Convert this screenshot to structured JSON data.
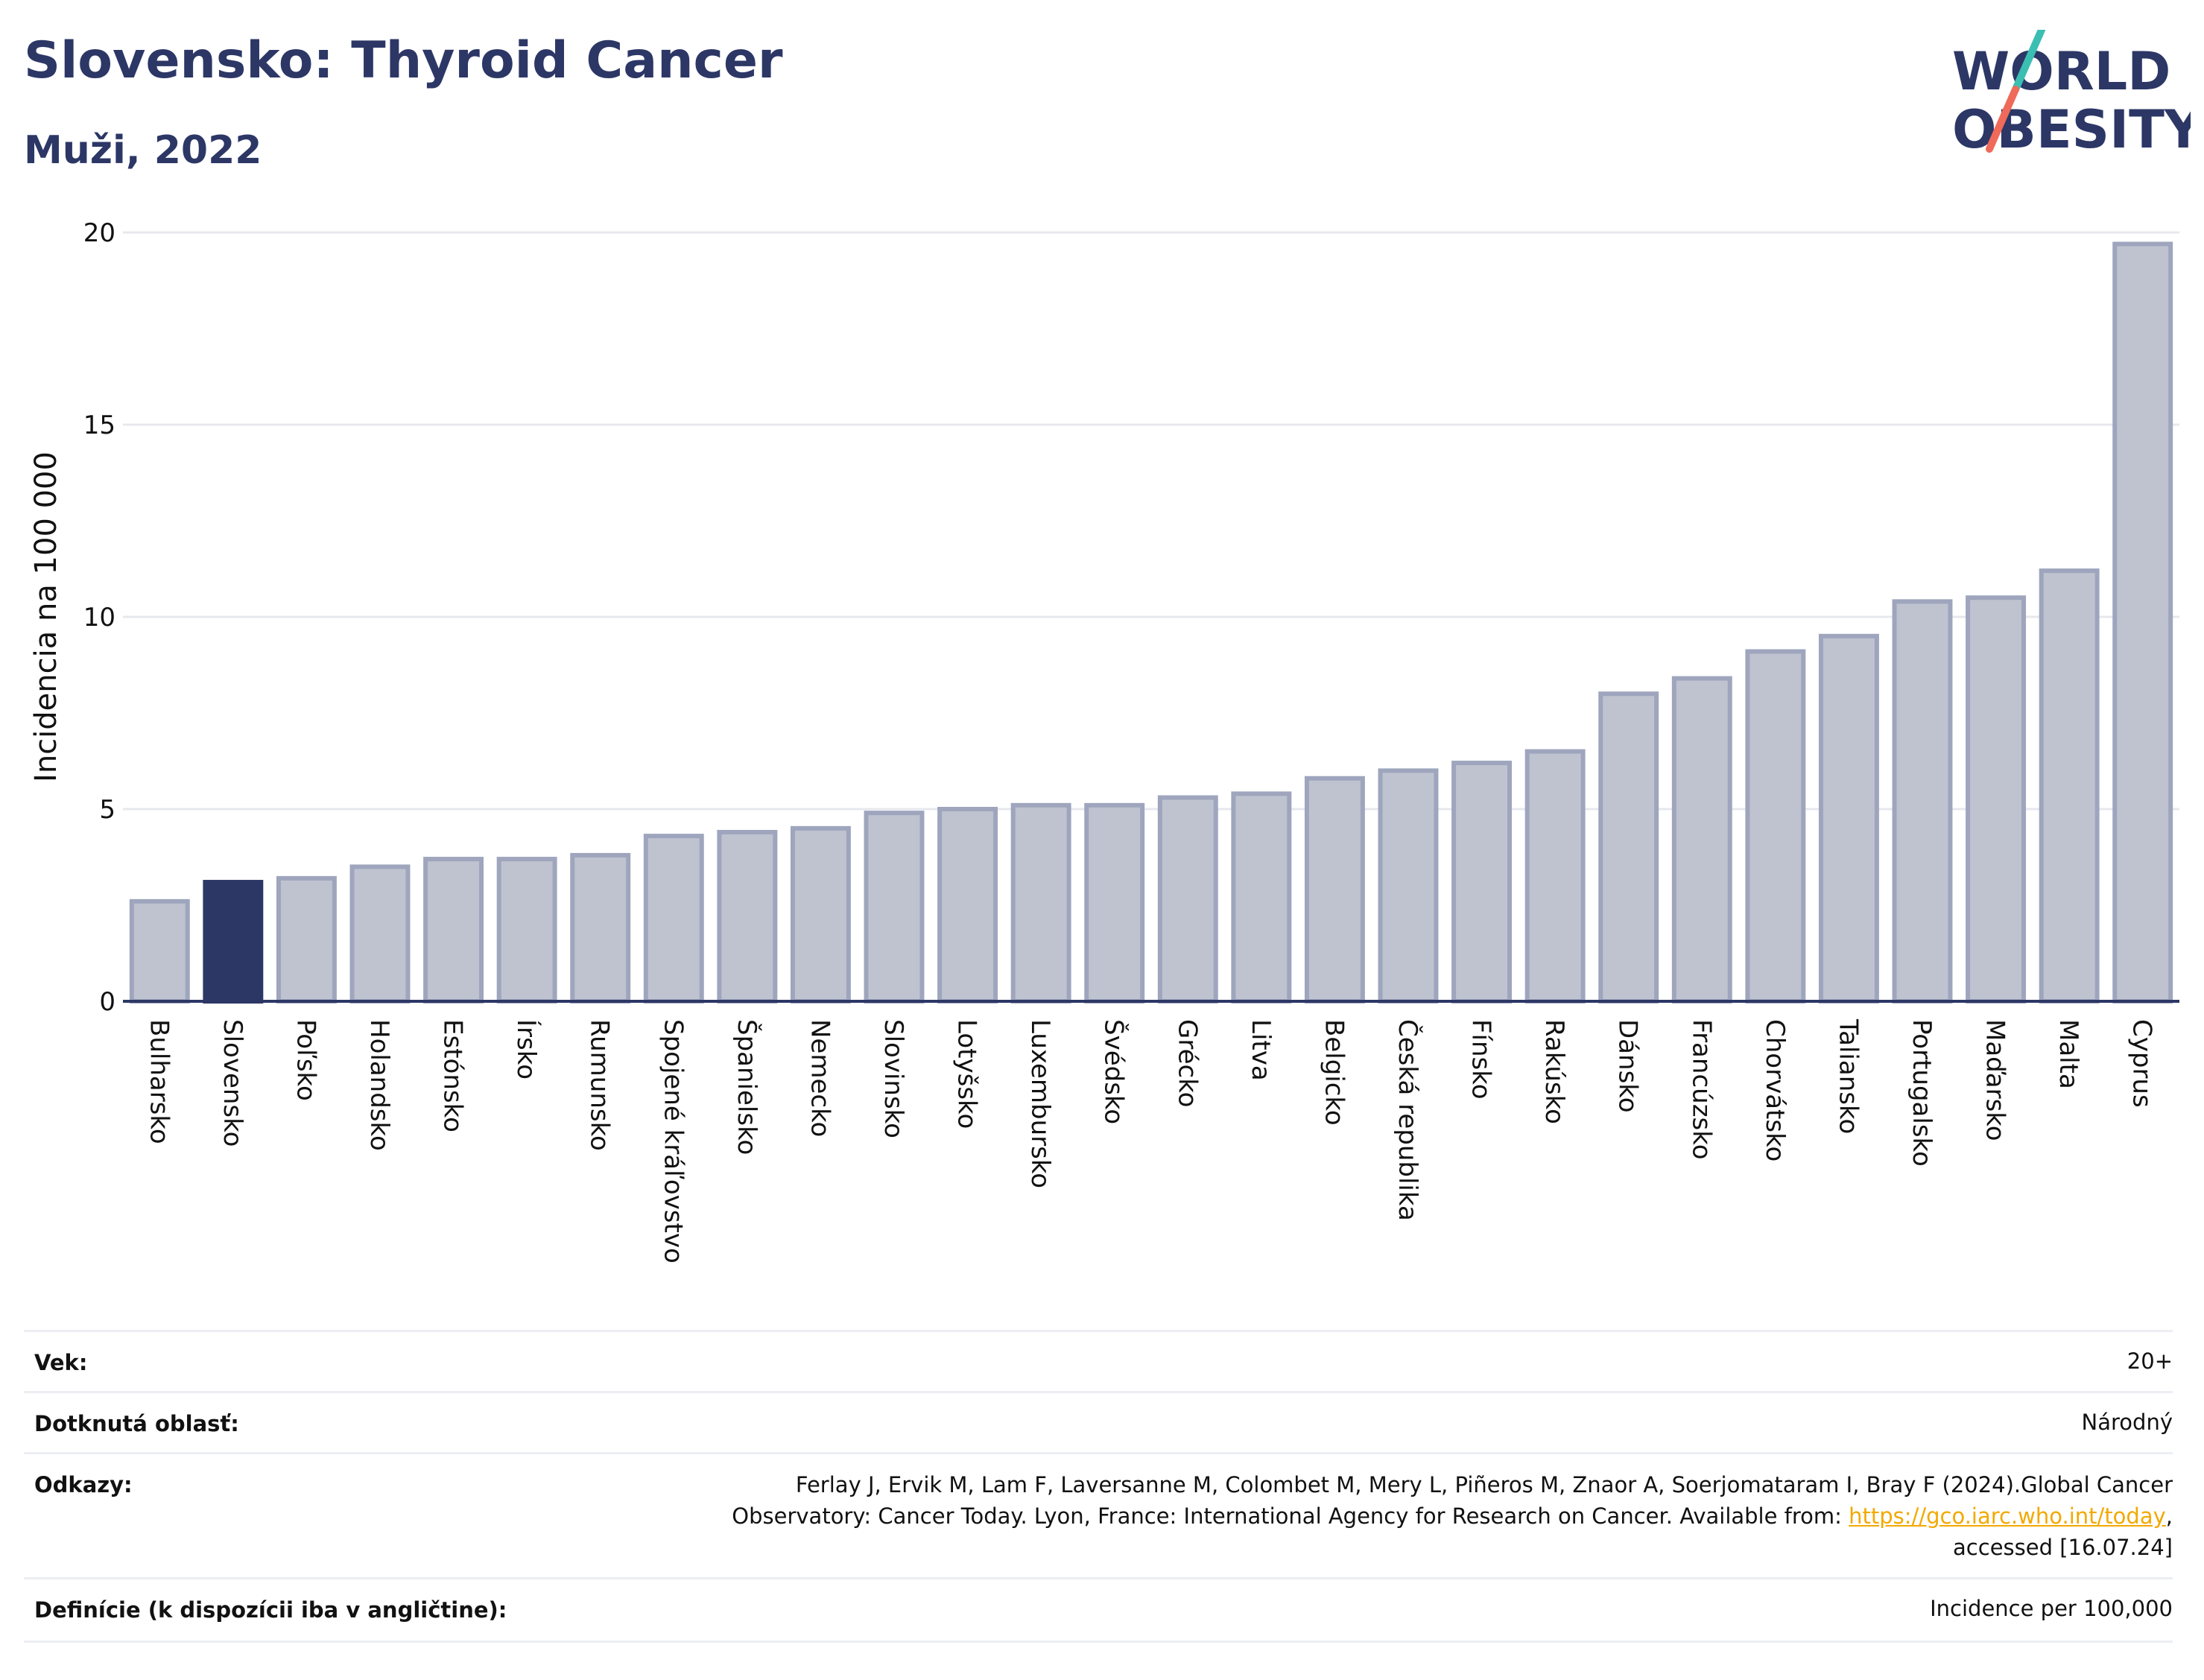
{
  "header": {
    "title": "Slovensko: Thyroid Cancer",
    "subtitle": "Muži, 2022",
    "logo_line1": "WORLD",
    "logo_line2": "OBESITY"
  },
  "colors": {
    "bar_default": "#bfc3d0",
    "bar_border": "#9ea5bd",
    "bar_highlight": "#2c3766",
    "grid": "#e6e8ee",
    "axis": "#2c3766",
    "logo_slash_top": "#3bbfb2",
    "logo_slash_bottom": "#ef6a5a"
  },
  "chart_data": {
    "type": "bar",
    "ylabel": "Incidencia na 100 000",
    "ylim": [
      0,
      20
    ],
    "yticks": [
      0,
      5,
      10,
      15,
      20
    ],
    "grid": true,
    "highlight": "Slovensko",
    "categories": [
      "Bulharsko",
      "Slovensko",
      "Poľsko",
      "Holandsko",
      "Estónsko",
      "Írsko",
      "Rumunsko",
      "Spojené kráľovstvo",
      "Španielsko",
      "Nemecko",
      "Slovinsko",
      "Lotyšsko",
      "Luxembursko",
      "Švédsko",
      "Grécko",
      "Litva",
      "Belgicko",
      "Česká republika",
      "Fínsko",
      "Rakúsko",
      "Dánsko",
      "Francúzsko",
      "Chorvátsko",
      "Taliansko",
      "Portugalsko",
      "Maďarsko",
      "Malta",
      "Cyprus"
    ],
    "values": [
      2.6,
      3.1,
      3.2,
      3.5,
      3.7,
      3.7,
      3.8,
      4.3,
      4.4,
      4.5,
      4.9,
      5.0,
      5.1,
      5.1,
      5.3,
      5.4,
      5.8,
      6.0,
      6.2,
      6.5,
      8.0,
      8.4,
      9.1,
      9.5,
      10.4,
      10.5,
      11.2,
      19.7
    ]
  },
  "meta": {
    "age_label": "Vek:",
    "age_value": "20+",
    "area_label": "Dotknutá oblasť:",
    "area_value": "Národný",
    "refs_label": "Odkazy:",
    "refs_line1": "Ferlay J, Ervik M, Lam F, Laversanne M, Colombet M, Mery L, Piñeros M, Znaor A, Soerjomataram I, Bray F (2024).Global Cancer",
    "refs_line2_pre": "Observatory: Cancer Today. Lyon, France: International Agency for Research on Cancer. Available from: ",
    "refs_link": "https://gco.iarc.who.int/today",
    "refs_line2_post": ",",
    "refs_line3": "accessed [16.07.24]",
    "def_label": "Definície (k dispozícii iba v angličtine):",
    "def_value": "Incidence per 100,000"
  }
}
